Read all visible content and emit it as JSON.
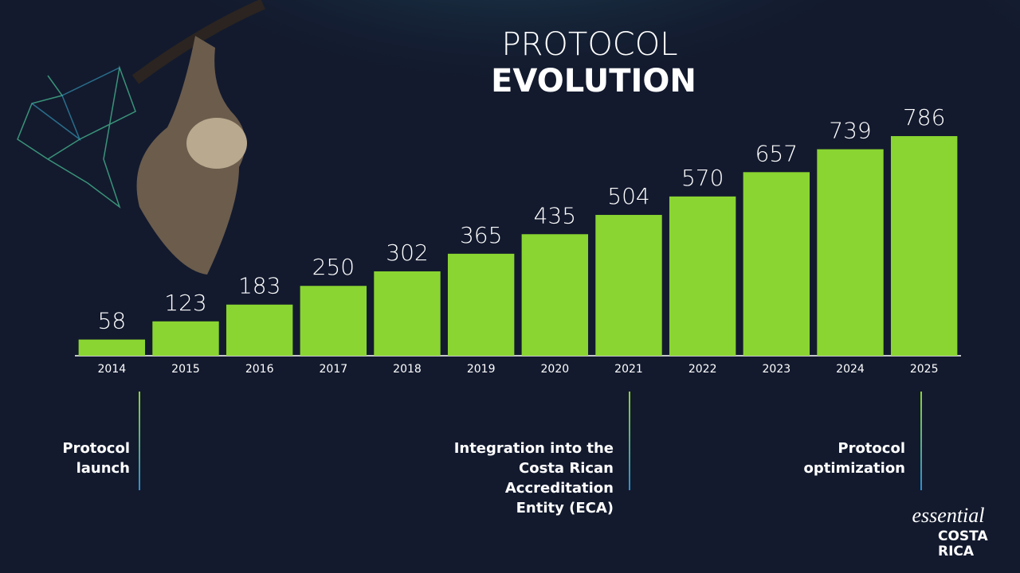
{
  "chart_data": {
    "type": "bar",
    "title_lines": [
      "PROTOCOL",
      "EVOLUTION"
    ],
    "categories": [
      "2014",
      "2015",
      "2016",
      "2017",
      "2018",
      "2019",
      "2020",
      "2021",
      "2022",
      "2023",
      "2024",
      "2025"
    ],
    "values": [
      58,
      123,
      183,
      250,
      302,
      365,
      435,
      504,
      570,
      657,
      739,
      786
    ],
    "color": "#8ad531",
    "ylim": [
      0,
      900
    ],
    "annotations": [
      [
        "Protocol",
        "launch"
      ],
      [
        "Integration into the",
        "Costa Rican",
        "Accreditation",
        "Entity (ECA)"
      ],
      [
        "Protocol",
        "optimization"
      ]
    ]
  },
  "logo": {
    "script": "essential",
    "name_lines": [
      "COSTA",
      "RICA"
    ]
  }
}
